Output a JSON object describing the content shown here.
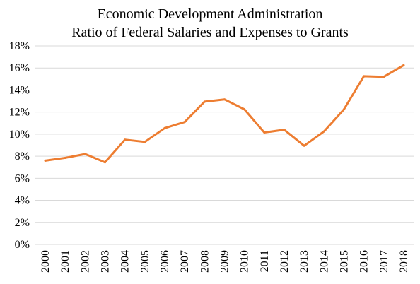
{
  "chart_data": {
    "type": "line",
    "title": [
      "Economic Development Administration",
      "Ratio of Federal Salaries and Expenses to Grants"
    ],
    "xlabel": "",
    "ylabel": "",
    "categories": [
      "2000",
      "2001",
      "2002",
      "2003",
      "2004",
      "2005",
      "2006",
      "2007",
      "2008",
      "2009",
      "2010",
      "2011",
      "2012",
      "2013",
      "2014",
      "2015",
      "2016",
      "2017",
      "2018"
    ],
    "series": [
      {
        "values": [
          7.6,
          7.85,
          8.2,
          7.45,
          9.5,
          9.3,
          10.55,
          11.1,
          12.95,
          13.15,
          12.25,
          10.15,
          10.4,
          8.95,
          10.25,
          12.25,
          15.25,
          15.2,
          16.25
        ],
        "color": "#ED7D31"
      }
    ],
    "ylim": [
      0,
      18
    ],
    "y_ticks": [
      "0%",
      "2%",
      "4%",
      "6%",
      "8%",
      "10%",
      "12%",
      "14%",
      "16%",
      "18%"
    ],
    "y_tick_values": [
      0,
      2,
      4,
      6,
      8,
      10,
      12,
      14,
      16,
      18
    ],
    "grid": true,
    "legend": "none",
    "gridline_color": "#d9d9d9"
  }
}
